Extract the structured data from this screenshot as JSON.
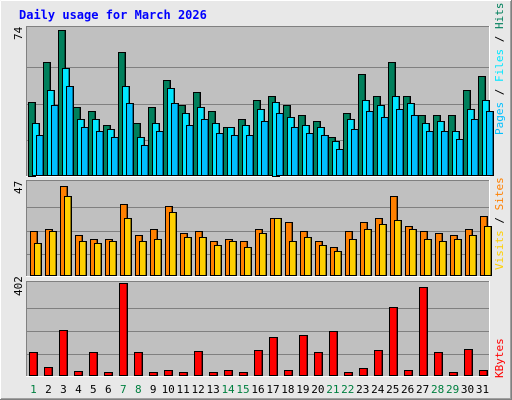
{
  "title": "Daily usage for March 2026",
  "colors": {
    "hits": "#00805c",
    "files": "#00e6ff",
    "pages": "#00c0ff",
    "sites": "#ff8000",
    "visits": "#ffd000",
    "kbytes": "#ff0000",
    "weekend_label": "#008040",
    "weekday_label": "#000000",
    "title": "#0000ff"
  },
  "chart_data": [
    {
      "type": "bar",
      "panel": "hits-files-pages",
      "ymax_label": "74",
      "ylim": [
        0,
        74
      ],
      "legend": [
        {
          "name": "Hits",
          "color": "#00805c"
        },
        {
          "name": "Files",
          "color": "#00e6ff"
        },
        {
          "name": "Pages",
          "color": "#00c0ff"
        }
      ],
      "categories": [
        "1",
        "2",
        "3",
        "4",
        "5",
        "6",
        "7",
        "8",
        "9",
        "10",
        "11",
        "12",
        "13",
        "14",
        "15",
        "16",
        "17",
        "18",
        "19",
        "20",
        "21",
        "22",
        "23",
        "24",
        "25",
        "26",
        "27",
        "28",
        "29",
        "30",
        "31"
      ],
      "series": [
        {
          "name": "Hits",
          "values": [
            37,
            57,
            73,
            34,
            32,
            25,
            62,
            26,
            34,
            48,
            35,
            42,
            32,
            24,
            28,
            38,
            40,
            35,
            30,
            27,
            19,
            31,
            51,
            40,
            57,
            40,
            30,
            30,
            30,
            43,
            50
          ]
        },
        {
          "name": "Files",
          "values": [
            26,
            43,
            54,
            28,
            28,
            23,
            45,
            19,
            26,
            44,
            31,
            34,
            26,
            24,
            25,
            33,
            37,
            29,
            25,
            24,
            17,
            28,
            38,
            35,
            40,
            36,
            26,
            27,
            22,
            33,
            38
          ]
        },
        {
          "name": "Pages",
          "values": [
            20,
            35,
            45,
            24,
            22,
            19,
            36,
            15,
            22,
            36,
            25,
            28,
            21,
            20,
            20,
            27,
            31,
            24,
            21,
            20,
            13,
            23,
            32,
            29,
            33,
            30,
            22,
            22,
            18,
            28,
            32
          ]
        }
      ]
    },
    {
      "type": "bar",
      "panel": "sites-visits",
      "ymax_label": "47",
      "ylim": [
        0,
        47
      ],
      "legend": [
        {
          "name": "Sites",
          "color": "#ff8000"
        },
        {
          "name": "Visits",
          "color": "#ffd000"
        }
      ],
      "categories": [
        "1",
        "2",
        "3",
        "4",
        "5",
        "6",
        "7",
        "8",
        "9",
        "10",
        "11",
        "12",
        "13",
        "14",
        "15",
        "16",
        "17",
        "18",
        "19",
        "20",
        "21",
        "22",
        "23",
        "24",
        "25",
        "26",
        "27",
        "28",
        "29",
        "30",
        "31"
      ],
      "series": [
        {
          "name": "Sites",
          "values": [
            22,
            23,
            45,
            20,
            18,
            18,
            36,
            20,
            23,
            35,
            21,
            22,
            17,
            18,
            17,
            23,
            29,
            27,
            22,
            17,
            14,
            22,
            27,
            29,
            40,
            25,
            22,
            21,
            20,
            23,
            30
          ]
        },
        {
          "name": "Visits",
          "values": [
            16,
            22,
            40,
            17,
            16,
            17,
            29,
            17,
            18,
            32,
            19,
            19,
            15,
            17,
            14,
            21,
            29,
            17,
            19,
            15,
            12,
            18,
            23,
            26,
            28,
            23,
            18,
            17,
            18,
            20,
            25
          ]
        }
      ]
    },
    {
      "type": "bar",
      "panel": "kbytes",
      "ymax_label": "402",
      "ylim": [
        0,
        402
      ],
      "legend": [
        {
          "name": "KBytes",
          "color": "#ff0000"
        }
      ],
      "categories": [
        "1",
        "2",
        "3",
        "4",
        "5",
        "6",
        "7",
        "8",
        "9",
        "10",
        "11",
        "12",
        "13",
        "14",
        "15",
        "16",
        "17",
        "18",
        "19",
        "20",
        "21",
        "22",
        "23",
        "24",
        "25",
        "26",
        "27",
        "28",
        "29",
        "30",
        "31"
      ],
      "series": [
        {
          "name": "KBytes",
          "values": [
            100,
            34,
            195,
            18,
            102,
            14,
            400,
            100,
            14,
            22,
            14,
            104,
            14,
            20,
            14,
            110,
            166,
            20,
            176,
            102,
            192,
            14,
            30,
            110,
            296,
            20,
            384,
            102,
            14,
            112,
            20
          ]
        }
      ],
      "weekend_days": [
        1,
        7,
        8,
        14,
        15,
        21,
        22,
        28,
        29
      ]
    }
  ]
}
